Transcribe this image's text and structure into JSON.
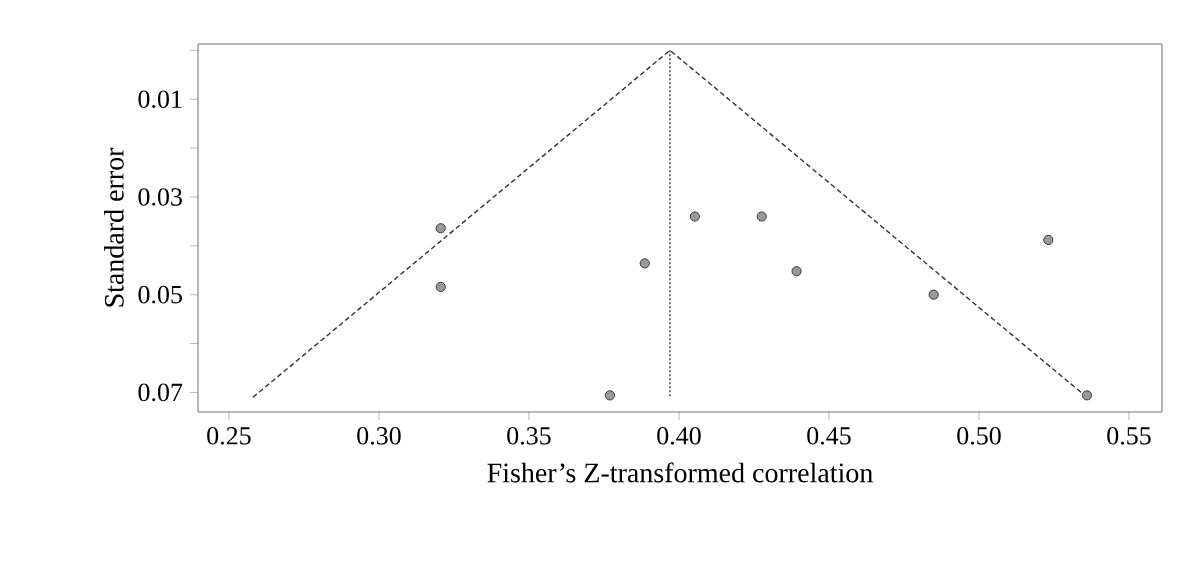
{
  "chart_data": {
    "type": "scatter",
    "xlabel": "Fisher’s Z-transformed correlation",
    "ylabel": "Standard error",
    "xlim": [
      0.2397,
      0.561
    ],
    "ylim": [
      0.074,
      -0.0013
    ],
    "xticks": [
      0.25,
      {
        "value": 0.3,
        "label": "0.30"
      },
      0.35,
      {
        "value": 0.4,
        "label": "0.40"
      },
      0.45,
      {
        "value": 0.5,
        "label": "0.50"
      },
      0.55
    ],
    "yticks": [
      {
        "value": 0,
        "label": null
      },
      0.01,
      {
        "value": 0.02,
        "label": null
      },
      0.03,
      {
        "value": 0.04,
        "label": null
      },
      0.05,
      {
        "value": 0.06,
        "label": null
      },
      0.07
    ],
    "grid": false,
    "series": [
      {
        "type": "line",
        "line_style": "dashed",
        "marker": "none",
        "color": "#333333",
        "x": [
          0.258,
          0.397,
          0.536
        ],
        "values": [
          0.071,
          0.0,
          0.071
        ]
      },
      {
        "type": "line",
        "line_style": "dotted",
        "marker": "none",
        "color": "#333333",
        "x": [
          0.397,
          0.397
        ],
        "values": [
          0.0,
          0.071
        ]
      },
      {
        "marker": "circle",
        "color": "#999999",
        "x": [
          0.3206,
          0.3206,
          0.3886,
          0.377,
          0.4053,
          0.4276,
          0.4392,
          0.4849,
          0.5231,
          0.536
        ],
        "values": [
          0.0364,
          0.0484,
          0.0436,
          0.0706,
          0.034,
          0.034,
          0.0452,
          0.05,
          0.0388,
          0.0706
        ]
      }
    ]
  }
}
